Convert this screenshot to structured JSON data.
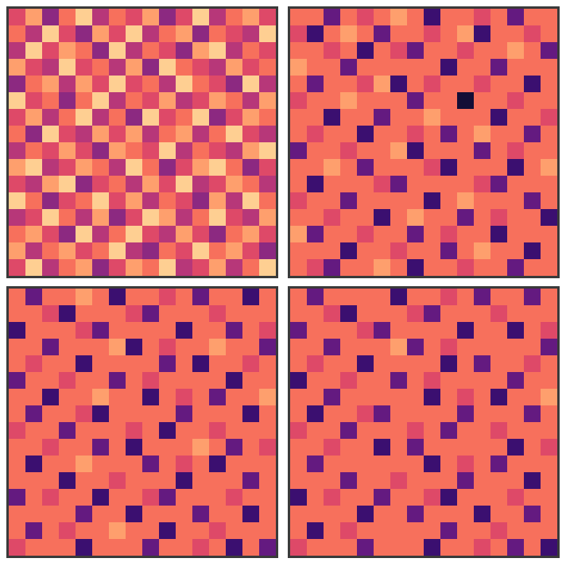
{
  "chart_data": [
    {
      "type": "heatmap",
      "tick_labels": false,
      "zlim": [
        0,
        1
      ],
      "cells": [
        [
          0.6,
          0.8,
          0.4,
          0.7,
          0.9,
          0.5,
          0.7,
          0.6,
          0.8,
          0.4,
          0.6,
          0.9,
          0.5,
          0.7,
          0.8,
          0.6
        ],
        [
          0.7,
          0.5,
          0.9,
          0.6,
          0.4,
          0.8,
          0.6,
          0.9,
          0.5,
          0.7,
          0.8,
          0.4,
          0.7,
          0.6,
          0.5,
          0.9
        ],
        [
          0.5,
          0.9,
          0.6,
          0.8,
          0.7,
          0.4,
          0.9,
          0.5,
          0.7,
          0.6,
          0.4,
          0.8,
          0.9,
          0.5,
          0.7,
          0.6
        ],
        [
          0.8,
          0.6,
          0.5,
          0.9,
          0.6,
          0.7,
          0.5,
          0.8,
          0.4,
          0.9,
          0.7,
          0.6,
          0.5,
          0.8,
          0.6,
          0.7
        ],
        [
          0.4,
          0.7,
          0.8,
          0.5,
          0.8,
          0.6,
          0.9,
          0.6,
          0.7,
          0.5,
          0.9,
          0.7,
          0.6,
          0.4,
          0.9,
          0.5
        ],
        [
          0.9,
          0.6,
          0.7,
          0.4,
          0.7,
          0.9,
          0.5,
          0.7,
          0.6,
          0.8,
          0.5,
          0.6,
          0.8,
          0.7,
          0.5,
          0.8
        ],
        [
          0.6,
          0.8,
          0.5,
          0.7,
          0.9,
          0.5,
          0.7,
          0.4,
          0.9,
          0.6,
          0.7,
          0.9,
          0.4,
          0.6,
          0.8,
          0.7
        ],
        [
          0.7,
          0.4,
          0.9,
          0.6,
          0.5,
          0.8,
          0.6,
          0.8,
          0.5,
          0.7,
          0.8,
          0.5,
          0.7,
          0.9,
          0.6,
          0.5
        ],
        [
          0.5,
          0.7,
          0.6,
          0.8,
          0.6,
          0.4,
          0.8,
          0.7,
          0.6,
          0.9,
          0.5,
          0.7,
          0.6,
          0.5,
          0.8,
          0.9
        ],
        [
          0.8,
          0.9,
          0.5,
          0.6,
          0.8,
          0.7,
          0.5,
          0.9,
          0.7,
          0.4,
          0.6,
          0.8,
          0.9,
          0.7,
          0.4,
          0.6
        ],
        [
          0.6,
          0.5,
          0.8,
          0.9,
          0.4,
          0.6,
          0.7,
          0.5,
          0.8,
          0.6,
          0.9,
          0.5,
          0.6,
          0.8,
          0.7,
          0.5
        ],
        [
          0.9,
          0.7,
          0.4,
          0.6,
          0.7,
          0.9,
          0.6,
          0.8,
          0.5,
          0.7,
          0.6,
          0.4,
          0.8,
          0.5,
          0.9,
          0.7
        ],
        [
          0.5,
          0.6,
          0.9,
          0.7,
          0.5,
          0.8,
          0.4,
          0.6,
          0.9,
          0.8,
          0.5,
          0.7,
          0.9,
          0.6,
          0.5,
          0.8
        ],
        [
          0.7,
          0.8,
          0.6,
          0.4,
          0.9,
          0.5,
          0.7,
          0.9,
          0.6,
          0.5,
          0.8,
          0.6,
          0.4,
          0.7,
          0.8,
          0.6
        ],
        [
          0.8,
          0.5,
          0.7,
          0.8,
          0.6,
          0.7,
          0.9,
          0.5,
          0.4,
          0.7,
          0.6,
          0.9,
          0.7,
          0.8,
          0.6,
          0.4
        ],
        [
          0.6,
          0.9,
          0.5,
          0.7,
          0.8,
          0.4,
          0.6,
          0.8,
          0.7,
          0.9,
          0.5,
          0.6,
          0.8,
          0.5,
          0.7,
          0.9
        ]
      ]
    },
    {
      "type": "heatmap",
      "tick_labels": false,
      "zlim": [
        0,
        1
      ],
      "cells": [
        [
          0.7,
          0.7,
          0.3,
          0.7,
          0.6,
          0.7,
          0.8,
          0.7,
          0.2,
          0.7,
          0.7,
          0.6,
          0.7,
          0.3,
          0.7,
          0.7
        ],
        [
          0.6,
          0.2,
          0.7,
          0.8,
          0.7,
          0.3,
          0.7,
          0.7,
          0.6,
          0.7,
          0.8,
          0.2,
          0.7,
          0.7,
          0.6,
          0.7
        ],
        [
          0.7,
          0.7,
          0.6,
          0.7,
          0.2,
          0.7,
          0.6,
          0.3,
          0.7,
          0.7,
          0.6,
          0.7,
          0.7,
          0.8,
          0.7,
          0.3
        ],
        [
          0.8,
          0.7,
          0.7,
          0.3,
          0.7,
          0.7,
          0.7,
          0.7,
          0.7,
          0.2,
          0.7,
          0.7,
          0.3,
          0.7,
          0.7,
          0.7
        ],
        [
          0.7,
          0.3,
          0.7,
          0.7,
          0.6,
          0.8,
          0.2,
          0.7,
          0.6,
          0.7,
          0.7,
          0.6,
          0.7,
          0.7,
          0.2,
          0.7
        ],
        [
          0.6,
          0.7,
          0.7,
          0.8,
          0.7,
          0.7,
          0.7,
          0.3,
          0.7,
          0.7,
          0.1,
          0.7,
          0.7,
          0.6,
          0.7,
          0.7
        ],
        [
          0.7,
          0.7,
          0.2,
          0.7,
          0.7,
          0.3,
          0.7,
          0.7,
          0.8,
          0.7,
          0.7,
          0.7,
          0.2,
          0.7,
          0.7,
          0.6
        ],
        [
          0.7,
          0.6,
          0.7,
          0.7,
          0.2,
          0.7,
          0.7,
          0.6,
          0.7,
          0.3,
          0.7,
          0.8,
          0.7,
          0.7,
          0.3,
          0.7
        ],
        [
          0.3,
          0.7,
          0.7,
          0.6,
          0.7,
          0.7,
          0.8,
          0.2,
          0.7,
          0.7,
          0.7,
          0.3,
          0.7,
          0.6,
          0.7,
          0.7
        ],
        [
          0.7,
          0.7,
          0.8,
          0.7,
          0.3,
          0.7,
          0.7,
          0.7,
          0.6,
          0.2,
          0.7,
          0.7,
          0.7,
          0.2,
          0.7,
          0.8
        ],
        [
          0.7,
          0.2,
          0.7,
          0.7,
          0.7,
          0.6,
          0.3,
          0.7,
          0.7,
          0.7,
          0.7,
          0.6,
          0.3,
          0.7,
          0.7,
          0.7
        ],
        [
          0.6,
          0.7,
          0.7,
          0.3,
          0.7,
          0.7,
          0.7,
          0.7,
          0.2,
          0.7,
          0.8,
          0.7,
          0.7,
          0.7,
          0.3,
          0.7
        ],
        [
          0.7,
          0.7,
          0.6,
          0.7,
          0.7,
          0.2,
          0.7,
          0.8,
          0.7,
          0.7,
          0.3,
          0.7,
          0.6,
          0.7,
          0.7,
          0.2
        ],
        [
          0.8,
          0.3,
          0.7,
          0.7,
          0.6,
          0.7,
          0.7,
          0.3,
          0.7,
          0.6,
          0.7,
          0.7,
          0.2,
          0.7,
          0.7,
          0.7
        ],
        [
          0.7,
          0.7,
          0.7,
          0.2,
          0.7,
          0.7,
          0.6,
          0.7,
          0.7,
          0.3,
          0.7,
          0.8,
          0.7,
          0.7,
          0.2,
          0.7
        ],
        [
          0.7,
          0.6,
          0.3,
          0.7,
          0.7,
          0.8,
          0.7,
          0.2,
          0.7,
          0.7,
          0.6,
          0.7,
          0.7,
          0.3,
          0.7,
          0.7
        ]
      ]
    },
    {
      "type": "heatmap",
      "tick_labels": false,
      "zlim": [
        0,
        1
      ],
      "cells": [
        [
          0.7,
          0.3,
          0.7,
          0.7,
          0.8,
          0.7,
          0.2,
          0.7,
          0.7,
          0.6,
          0.7,
          0.3,
          0.7,
          0.7,
          0.2,
          0.7
        ],
        [
          0.7,
          0.7,
          0.6,
          0.2,
          0.7,
          0.7,
          0.7,
          0.6,
          0.3,
          0.7,
          0.7,
          0.7,
          0.6,
          0.7,
          0.7,
          0.7
        ],
        [
          0.2,
          0.7,
          0.7,
          0.7,
          0.6,
          0.3,
          0.7,
          0.7,
          0.7,
          0.7,
          0.2,
          0.7,
          0.7,
          0.3,
          0.7,
          0.6
        ],
        [
          0.7,
          0.7,
          0.3,
          0.7,
          0.7,
          0.7,
          0.8,
          0.2,
          0.7,
          0.6,
          0.7,
          0.7,
          0.8,
          0.7,
          0.7,
          0.3
        ],
        [
          0.7,
          0.6,
          0.7,
          0.7,
          0.2,
          0.7,
          0.7,
          0.7,
          0.7,
          0.3,
          0.7,
          0.2,
          0.7,
          0.7,
          0.6,
          0.7
        ],
        [
          0.3,
          0.7,
          0.7,
          0.6,
          0.7,
          0.7,
          0.3,
          0.7,
          0.6,
          0.7,
          0.7,
          0.7,
          0.7,
          0.2,
          0.7,
          0.7
        ],
        [
          0.7,
          0.7,
          0.2,
          0.7,
          0.7,
          0.8,
          0.7,
          0.7,
          0.2,
          0.7,
          0.6,
          0.7,
          0.3,
          0.7,
          0.7,
          0.8
        ],
        [
          0.7,
          0.3,
          0.7,
          0.7,
          0.6,
          0.2,
          0.7,
          0.7,
          0.7,
          0.7,
          0.3,
          0.7,
          0.7,
          0.7,
          0.2,
          0.7
        ],
        [
          0.6,
          0.7,
          0.7,
          0.3,
          0.7,
          0.7,
          0.7,
          0.6,
          0.7,
          0.2,
          0.7,
          0.7,
          0.6,
          0.7,
          0.7,
          0.7
        ],
        [
          0.7,
          0.7,
          0.6,
          0.7,
          0.7,
          0.3,
          0.7,
          0.2,
          0.7,
          0.7,
          0.7,
          0.8,
          0.7,
          0.3,
          0.7,
          0.6
        ],
        [
          0.7,
          0.2,
          0.7,
          0.7,
          0.8,
          0.7,
          0.7,
          0.7,
          0.3,
          0.7,
          0.6,
          0.7,
          0.2,
          0.7,
          0.7,
          0.7
        ],
        [
          0.7,
          0.7,
          0.7,
          0.2,
          0.7,
          0.7,
          0.6,
          0.7,
          0.7,
          0.7,
          0.2,
          0.7,
          0.7,
          0.7,
          0.3,
          0.7
        ],
        [
          0.3,
          0.7,
          0.6,
          0.7,
          0.7,
          0.2,
          0.7,
          0.7,
          0.6,
          0.3,
          0.7,
          0.7,
          0.7,
          0.6,
          0.7,
          0.7
        ],
        [
          0.7,
          0.7,
          0.7,
          0.7,
          0.3,
          0.7,
          0.7,
          0.2,
          0.7,
          0.7,
          0.7,
          0.3,
          0.7,
          0.7,
          0.2,
          0.7
        ],
        [
          0.7,
          0.3,
          0.7,
          0.6,
          0.7,
          0.7,
          0.8,
          0.7,
          0.7,
          0.2,
          0.7,
          0.7,
          0.6,
          0.7,
          0.7,
          0.7
        ],
        [
          0.6,
          0.7,
          0.7,
          0.7,
          0.2,
          0.7,
          0.7,
          0.7,
          0.3,
          0.7,
          0.7,
          0.6,
          0.7,
          0.2,
          0.7,
          0.3
        ]
      ]
    },
    {
      "type": "heatmap",
      "tick_labels": false,
      "zlim": [
        0,
        1
      ],
      "cells": [
        [
          0.7,
          0.3,
          0.7,
          0.7,
          0.7,
          0.7,
          0.2,
          0.7,
          0.7,
          0.6,
          0.7,
          0.3,
          0.7,
          0.7,
          0.3,
          0.7
        ],
        [
          0.7,
          0.7,
          0.6,
          0.2,
          0.7,
          0.7,
          0.7,
          0.6,
          0.3,
          0.7,
          0.7,
          0.7,
          0.6,
          0.7,
          0.7,
          0.7
        ],
        [
          0.3,
          0.7,
          0.7,
          0.7,
          0.6,
          0.3,
          0.7,
          0.7,
          0.7,
          0.7,
          0.2,
          0.7,
          0.7,
          0.2,
          0.7,
          0.6
        ],
        [
          0.7,
          0.7,
          0.3,
          0.7,
          0.7,
          0.7,
          0.8,
          0.3,
          0.7,
          0.6,
          0.7,
          0.7,
          0.7,
          0.7,
          0.7,
          0.3
        ],
        [
          0.7,
          0.6,
          0.7,
          0.7,
          0.2,
          0.7,
          0.7,
          0.7,
          0.7,
          0.2,
          0.7,
          0.3,
          0.7,
          0.7,
          0.6,
          0.7
        ],
        [
          0.2,
          0.7,
          0.7,
          0.6,
          0.7,
          0.7,
          0.3,
          0.7,
          0.6,
          0.7,
          0.7,
          0.7,
          0.7,
          0.3,
          0.7,
          0.7
        ],
        [
          0.7,
          0.7,
          0.3,
          0.7,
          0.7,
          0.7,
          0.7,
          0.7,
          0.2,
          0.7,
          0.6,
          0.7,
          0.2,
          0.7,
          0.7,
          0.8
        ],
        [
          0.7,
          0.2,
          0.7,
          0.7,
          0.6,
          0.3,
          0.7,
          0.7,
          0.7,
          0.7,
          0.3,
          0.7,
          0.7,
          0.7,
          0.3,
          0.7
        ],
        [
          0.6,
          0.7,
          0.7,
          0.3,
          0.7,
          0.7,
          0.7,
          0.6,
          0.7,
          0.3,
          0.7,
          0.7,
          0.6,
          0.7,
          0.7,
          0.7
        ],
        [
          0.7,
          0.7,
          0.6,
          0.7,
          0.7,
          0.2,
          0.7,
          0.3,
          0.7,
          0.7,
          0.7,
          0.7,
          0.7,
          0.2,
          0.7,
          0.6
        ],
        [
          0.7,
          0.3,
          0.7,
          0.7,
          0.7,
          0.7,
          0.7,
          0.7,
          0.2,
          0.7,
          0.6,
          0.7,
          0.3,
          0.7,
          0.7,
          0.7
        ],
        [
          0.7,
          0.7,
          0.7,
          0.3,
          0.7,
          0.7,
          0.6,
          0.7,
          0.7,
          0.7,
          0.3,
          0.7,
          0.7,
          0.7,
          0.2,
          0.7
        ],
        [
          0.2,
          0.7,
          0.6,
          0.7,
          0.7,
          0.3,
          0.7,
          0.7,
          0.6,
          0.2,
          0.7,
          0.7,
          0.7,
          0.6,
          0.7,
          0.7
        ],
        [
          0.7,
          0.7,
          0.7,
          0.7,
          0.2,
          0.7,
          0.7,
          0.3,
          0.7,
          0.7,
          0.7,
          0.2,
          0.7,
          0.7,
          0.3,
          0.7
        ],
        [
          0.7,
          0.2,
          0.7,
          0.6,
          0.7,
          0.7,
          0.7,
          0.7,
          0.7,
          0.3,
          0.7,
          0.7,
          0.6,
          0.7,
          0.7,
          0.7
        ],
        [
          0.6,
          0.7,
          0.7,
          0.7,
          0.3,
          0.7,
          0.7,
          0.7,
          0.2,
          0.7,
          0.7,
          0.6,
          0.7,
          0.3,
          0.7,
          0.2
        ]
      ]
    }
  ]
}
